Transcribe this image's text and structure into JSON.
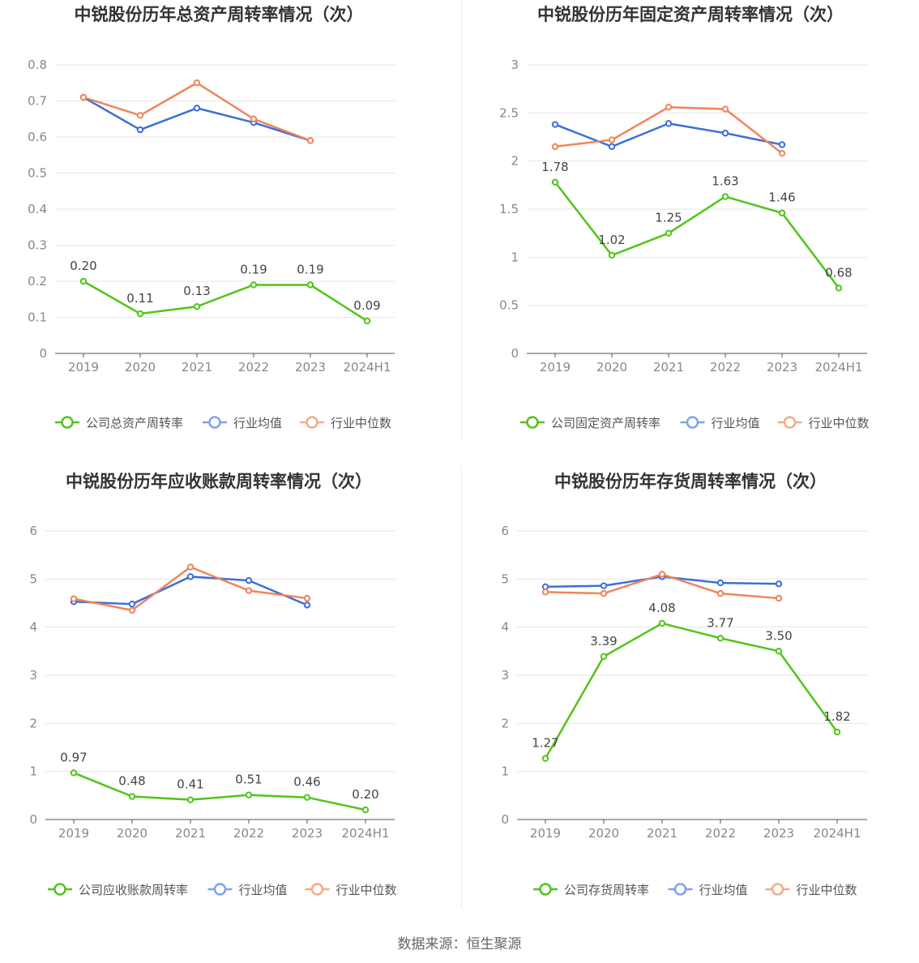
{
  "source_text": "数据来源：恒生聚源",
  "colors": {
    "company": "#52c41a",
    "industry_avg": "#3d6fd8",
    "industry_median": "#f0845a"
  },
  "chart_data": [
    {
      "type": "line",
      "title": "中锐股份历年总资产周转率情况（次）",
      "categories": [
        "2019",
        "2020",
        "2021",
        "2022",
        "2023",
        "2024H1"
      ],
      "ylim": [
        0,
        0.8
      ],
      "yticks": [
        "0",
        "0.1",
        "0.2",
        "0.3",
        "0.4",
        "0.5",
        "0.6",
        "0.7",
        "0.8"
      ],
      "series": [
        {
          "name": "公司总资产周转率",
          "values": [
            0.2,
            0.11,
            0.13,
            0.19,
            0.19,
            0.09
          ],
          "labels": [
            "0.20",
            "0.11",
            "0.13",
            "0.19",
            "0.19",
            "0.09"
          ]
        },
        {
          "name": "行业均值",
          "values": [
            0.71,
            0.62,
            0.68,
            0.64,
            0.59,
            null
          ]
        },
        {
          "name": "行业中位数",
          "values": [
            0.71,
            0.66,
            0.75,
            0.65,
            0.59,
            null
          ]
        }
      ]
    },
    {
      "type": "line",
      "title": "中锐股份历年固定资产周转率情况（次）",
      "categories": [
        "2019",
        "2020",
        "2021",
        "2022",
        "2023",
        "2024H1"
      ],
      "ylim": [
        0,
        3
      ],
      "yticks": [
        "0",
        "0.5",
        "1",
        "1.5",
        "2",
        "2.5",
        "3"
      ],
      "series": [
        {
          "name": "公司固定资产周转率",
          "values": [
            1.78,
            1.02,
            1.25,
            1.63,
            1.46,
            0.68
          ],
          "labels": [
            "1.78",
            "1.02",
            "1.25",
            "1.63",
            "1.46",
            "0.68"
          ]
        },
        {
          "name": "行业均值",
          "values": [
            2.38,
            2.15,
            2.39,
            2.29,
            2.17,
            null
          ]
        },
        {
          "name": "行业中位数",
          "values": [
            2.15,
            2.22,
            2.56,
            2.54,
            2.08,
            null
          ]
        }
      ]
    },
    {
      "type": "line",
      "title": "中锐股份历年应收账款周转率情况（次）",
      "categories": [
        "2019",
        "2020",
        "2021",
        "2022",
        "2023",
        "2024H1"
      ],
      "ylim": [
        0,
        6
      ],
      "yticks": [
        "0",
        "1",
        "2",
        "3",
        "4",
        "5",
        "6"
      ],
      "series": [
        {
          "name": "公司应收账款周转率",
          "values": [
            0.97,
            0.48,
            0.41,
            0.51,
            0.46,
            0.2
          ],
          "labels": [
            "0.97",
            "0.48",
            "0.41",
            "0.51",
            "0.46",
            "0.20"
          ]
        },
        {
          "name": "行业均值",
          "values": [
            4.53,
            4.48,
            5.05,
            4.97,
            4.46,
            null
          ]
        },
        {
          "name": "行业中位数",
          "values": [
            4.59,
            4.35,
            5.25,
            4.76,
            4.6,
            null
          ]
        }
      ]
    },
    {
      "type": "line",
      "title": "中锐股份历年存货周转率情况（次）",
      "categories": [
        "2019",
        "2020",
        "2021",
        "2022",
        "2023",
        "2024H1"
      ],
      "ylim": [
        0,
        6
      ],
      "yticks": [
        "0",
        "1",
        "2",
        "3",
        "4",
        "5",
        "6"
      ],
      "series": [
        {
          "name": "公司存货周转率",
          "values": [
            1.27,
            3.39,
            4.08,
            3.77,
            3.5,
            1.82
          ],
          "labels": [
            "1.27",
            "3.39",
            "4.08",
            "3.77",
            "3.50",
            "1.82"
          ]
        },
        {
          "name": "行业均值",
          "values": [
            4.84,
            4.86,
            5.05,
            4.92,
            4.9,
            null
          ]
        },
        {
          "name": "行业中位数",
          "values": [
            4.73,
            4.7,
            5.1,
            4.7,
            4.6,
            null
          ]
        }
      ]
    }
  ]
}
